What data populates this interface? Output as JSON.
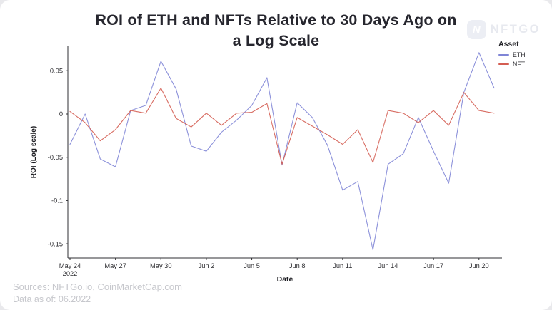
{
  "title": {
    "line1": "ROI of ETH and NFTs Relative to 30 Days Ago on",
    "line2": "a Log Scale"
  },
  "logo": {
    "badge_letter": "N",
    "text": "NFTGO"
  },
  "legend": {
    "title": "Asset",
    "items": [
      {
        "label": "ETH",
        "color": "#7f85d6"
      },
      {
        "label": "NFT",
        "color": "#d45d52"
      }
    ]
  },
  "footer": {
    "sources": "Sources: NFTGo.io, CoinMarketCap.com",
    "data_as_of": "Data as of: 06.2022"
  },
  "chart_data": {
    "type": "line",
    "title": "ROI of ETH and NFTs Relative to 30 Days Ago on a Log Scale",
    "xlabel": "Date",
    "ylabel": "ROI (Log scale)",
    "grid": false,
    "legend_position": "top-right",
    "ylim": [
      -0.166,
      0.078
    ],
    "x": [
      "May 24",
      "May 25",
      "May 26",
      "May 27",
      "May 28",
      "May 29",
      "May 30",
      "May 31",
      "Jun 1",
      "Jun 2",
      "Jun 3",
      "Jun 4",
      "Jun 5",
      "Jun 6",
      "Jun 7",
      "Jun 8",
      "Jun 9",
      "Jun 10",
      "Jun 11",
      "Jun 12",
      "Jun 13",
      "Jun 14",
      "Jun 15",
      "Jun 16",
      "Jun 17",
      "Jun 18",
      "Jun 19",
      "Jun 20",
      "Jun 21"
    ],
    "x_ticks": [
      {
        "index": 0,
        "label": "May 24",
        "sub": "2022"
      },
      {
        "index": 3,
        "label": "May 27"
      },
      {
        "index": 6,
        "label": "May 30"
      },
      {
        "index": 9,
        "label": "Jun 2"
      },
      {
        "index": 12,
        "label": "Jun 5"
      },
      {
        "index": 15,
        "label": "Jun 8"
      },
      {
        "index": 18,
        "label": "Jun 11"
      },
      {
        "index": 21,
        "label": "Jun 14"
      },
      {
        "index": 24,
        "label": "Jun 17"
      },
      {
        "index": 27,
        "label": "Jun 20"
      }
    ],
    "y_ticks": [
      {
        "value": 0.05,
        "label": "0.05"
      },
      {
        "value": 0,
        "label": "0"
      },
      {
        "value": -0.05,
        "label": "-0.05"
      },
      {
        "value": -0.1,
        "label": "-0.1"
      },
      {
        "value": -0.15,
        "label": "-0.15"
      }
    ],
    "series": [
      {
        "name": "ETH",
        "color": "#7f85d6",
        "values": [
          -0.035,
          0.0,
          -0.052,
          -0.061,
          0.004,
          0.01,
          0.061,
          0.029,
          -0.037,
          -0.043,
          -0.021,
          -0.007,
          0.01,
          0.042,
          -0.059,
          0.013,
          -0.004,
          -0.036,
          -0.088,
          -0.078,
          -0.157,
          -0.058,
          -0.046,
          -0.004,
          -0.043,
          -0.08,
          0.025,
          0.071,
          0.03
        ]
      },
      {
        "name": "NFT",
        "color": "#d45d52",
        "values": [
          0.003,
          -0.01,
          -0.031,
          -0.018,
          0.004,
          0.001,
          0.03,
          -0.005,
          -0.015,
          0.001,
          -0.013,
          0.001,
          0.002,
          0.012,
          -0.058,
          -0.004,
          -0.014,
          -0.024,
          -0.035,
          -0.018,
          -0.056,
          0.004,
          0.001,
          -0.01,
          0.004,
          -0.013,
          0.025,
          0.004,
          0.001
        ]
      }
    ]
  }
}
